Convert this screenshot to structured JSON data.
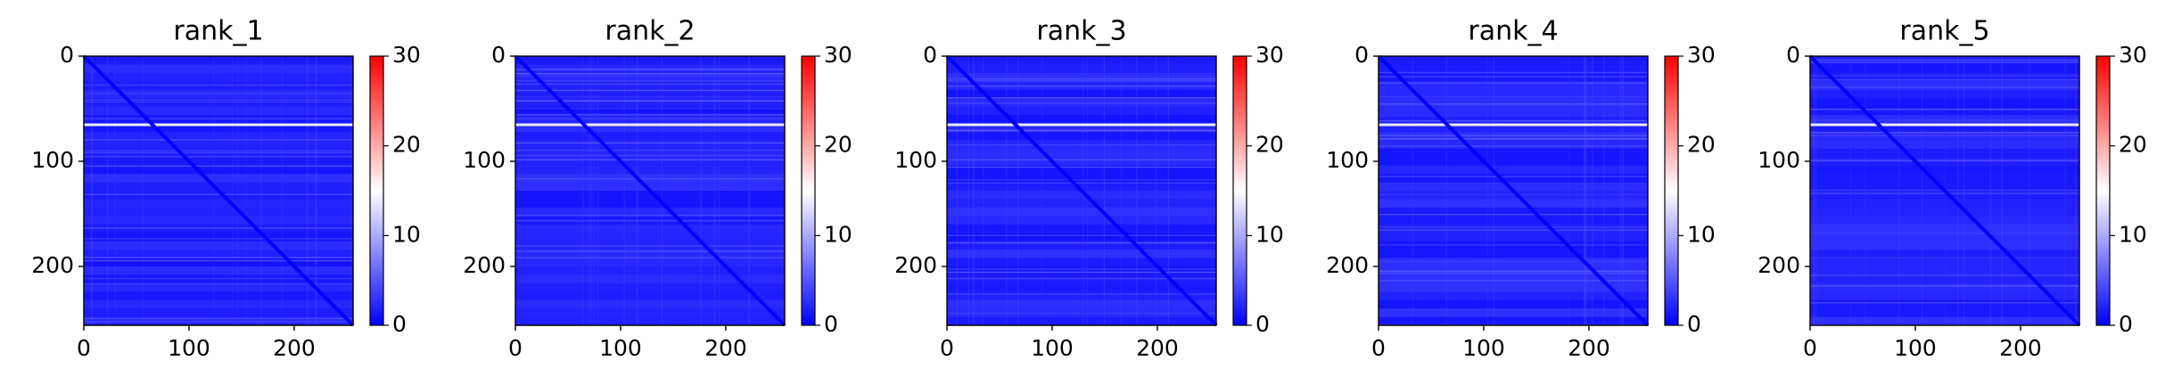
{
  "chart_data": [
    {
      "type": "heatmap",
      "title": "rank_1",
      "matrix_size": 256,
      "xlim": [
        0,
        256
      ],
      "ylim": [
        256,
        0
      ],
      "xticks": [
        0,
        100,
        200
      ],
      "yticks": [
        0,
        100,
        200
      ],
      "colorbar": {
        "range": [
          0,
          30
        ],
        "ticks": [
          0,
          10,
          20,
          30
        ],
        "colormap": "bwr"
      },
      "approx_values": {
        "background": 2,
        "diagonal": 0,
        "bright_row_index": 64,
        "bright_row_value": 15
      }
    },
    {
      "type": "heatmap",
      "title": "rank_2",
      "matrix_size": 256,
      "xlim": [
        0,
        256
      ],
      "ylim": [
        256,
        0
      ],
      "xticks": [
        0,
        100,
        200
      ],
      "yticks": [
        0,
        100,
        200
      ],
      "colorbar": {
        "range": [
          0,
          30
        ],
        "ticks": [
          0,
          10,
          20,
          30
        ],
        "colormap": "bwr"
      },
      "approx_values": {
        "background": 2,
        "diagonal": 0,
        "bright_row_index": 64,
        "bright_row_value": 15
      }
    },
    {
      "type": "heatmap",
      "title": "rank_3",
      "matrix_size": 256,
      "xlim": [
        0,
        256
      ],
      "ylim": [
        256,
        0
      ],
      "xticks": [
        0,
        100,
        200
      ],
      "yticks": [
        0,
        100,
        200
      ],
      "colorbar": {
        "range": [
          0,
          30
        ],
        "ticks": [
          0,
          10,
          20,
          30
        ],
        "colormap": "bwr"
      },
      "approx_values": {
        "background": 2,
        "diagonal": 0,
        "bright_row_index": 64,
        "bright_row_value": 15
      }
    },
    {
      "type": "heatmap",
      "title": "rank_4",
      "matrix_size": 256,
      "xlim": [
        0,
        256
      ],
      "ylim": [
        256,
        0
      ],
      "xticks": [
        0,
        100,
        200
      ],
      "yticks": [
        0,
        100,
        200
      ],
      "colorbar": {
        "range": [
          0,
          30
        ],
        "ticks": [
          0,
          10,
          20,
          30
        ],
        "colormap": "bwr"
      },
      "approx_values": {
        "background": 2,
        "diagonal": 0,
        "bright_row_index": 64,
        "bright_row_value": 15
      }
    },
    {
      "type": "heatmap",
      "title": "rank_5",
      "matrix_size": 256,
      "xlim": [
        0,
        256
      ],
      "ylim": [
        256,
        0
      ],
      "xticks": [
        0,
        100,
        200
      ],
      "yticks": [
        0,
        100,
        200
      ],
      "colorbar": {
        "range": [
          0,
          30
        ],
        "ticks": [
          0,
          10,
          20,
          30
        ],
        "colormap": "bwr"
      },
      "approx_values": {
        "background": 2,
        "diagonal": 0,
        "bright_row_index": 64,
        "bright_row_value": 15
      }
    }
  ],
  "colors": {
    "cmap_low": "#0000ff",
    "cmap_mid": "#ffffff",
    "cmap_high": "#ff0000",
    "axis": "#000000",
    "text": "#000000"
  }
}
